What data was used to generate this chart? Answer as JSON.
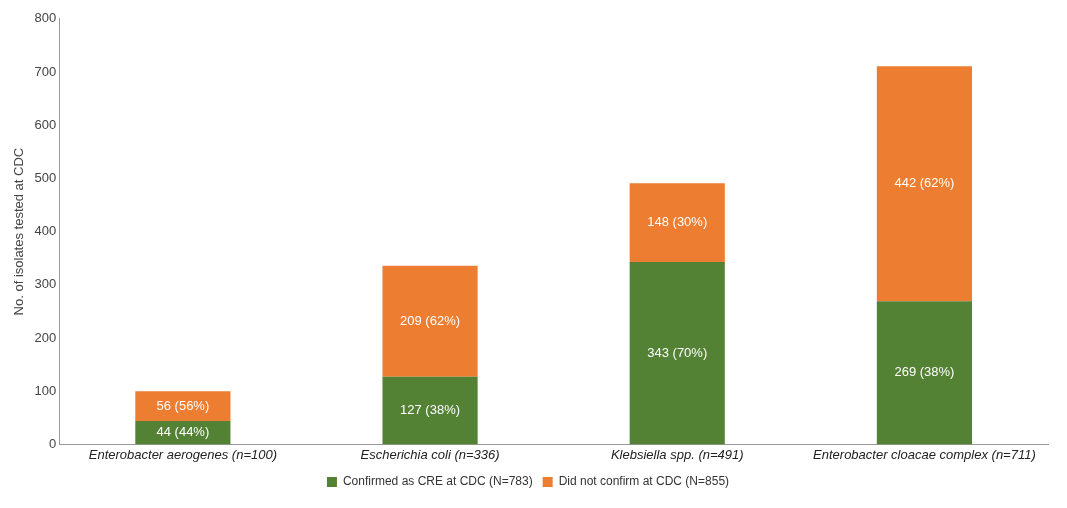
{
  "chart_data": {
    "type": "bar",
    "stacked": true,
    "ylabel": "No. of isolates tested at CDC",
    "categories": [
      "Enterobacter aerogenes (n=100)",
      "Escherichia coli (n=336)",
      "Klebsiella spp. (n=491)",
      "Enterobacter cloacae complex (n=711)"
    ],
    "series": [
      {
        "name": "Confirmed as CRE at CDC (N=783)",
        "color": "#548235",
        "values": [
          44,
          127,
          343,
          269
        ],
        "value_labels": [
          "44 (44%)",
          "127 (38%)",
          "343 (70%)",
          "269 (38%)"
        ]
      },
      {
        "name": "Did not confirm at CDC (N=855)",
        "color": "#ed7d31",
        "values": [
          56,
          209,
          148,
          442
        ],
        "value_labels": [
          "56 (56%)",
          "209 (62%)",
          "148 (30%)",
          "442 (62%)"
        ]
      }
    ],
    "ylim": [
      0,
      800
    ],
    "yticks": [
      0,
      100,
      200,
      300,
      400,
      500,
      600,
      700,
      800
    ],
    "grid": false,
    "legend": "bottom"
  }
}
